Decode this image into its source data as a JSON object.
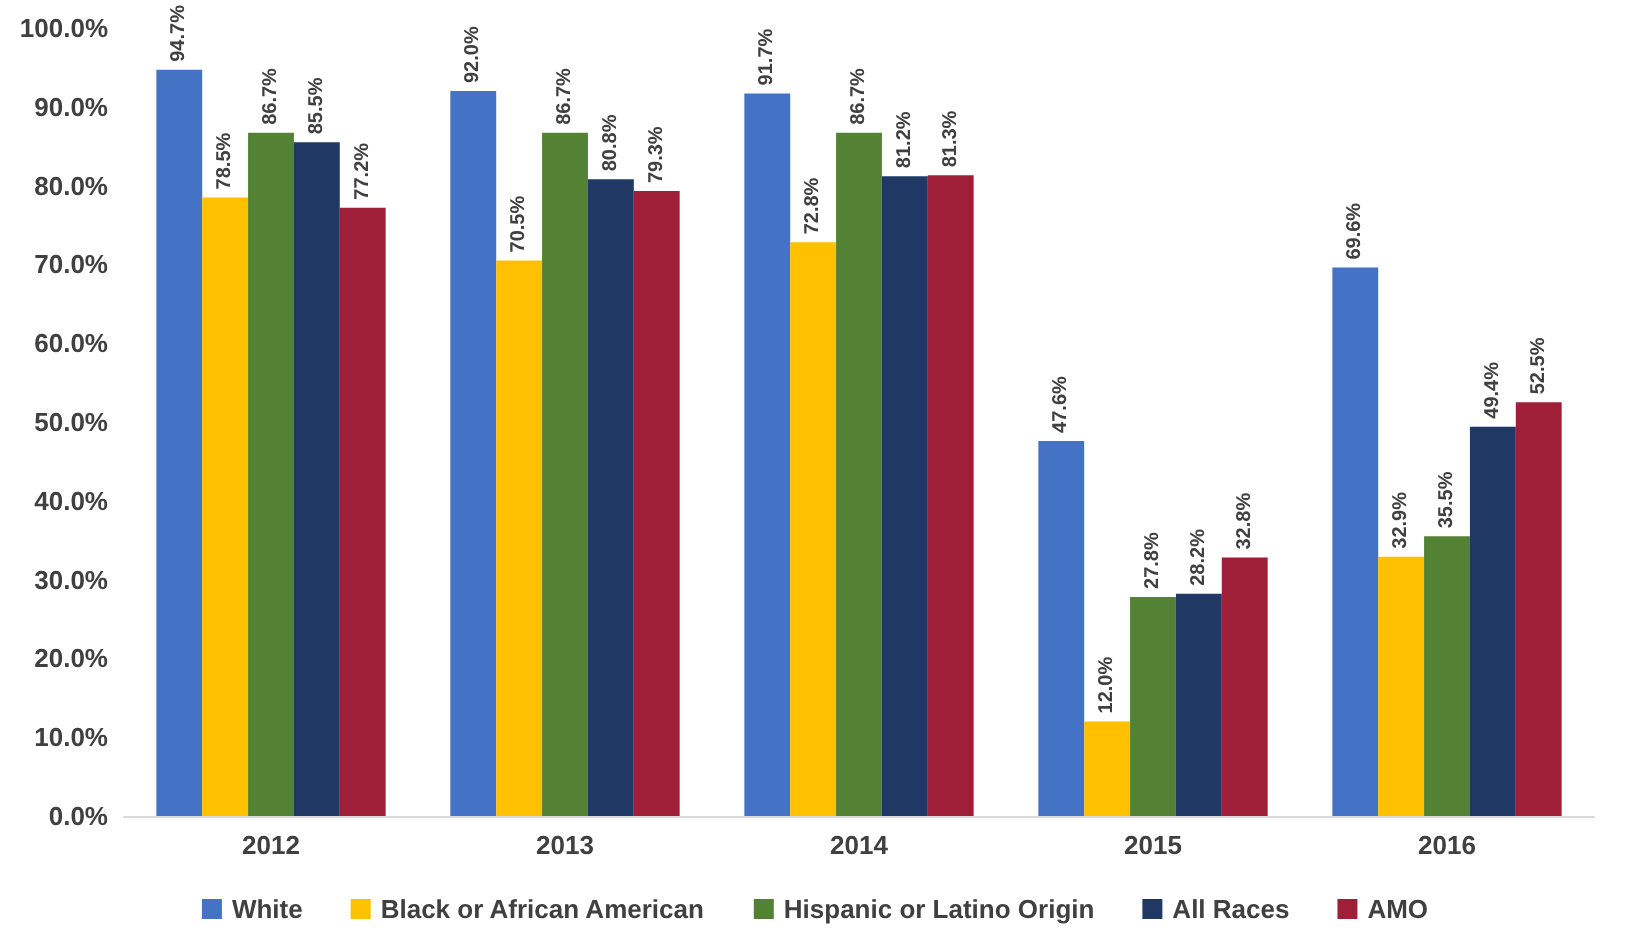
{
  "chart_data": {
    "type": "bar",
    "categories": [
      "2012",
      "2013",
      "2014",
      "2015",
      "2016"
    ],
    "series": [
      {
        "name": "White",
        "color": "#4472c4",
        "values": [
          94.7,
          92.0,
          91.7,
          47.6,
          69.6
        ],
        "value_labels": [
          "94.7%",
          "92.0%",
          "91.7%",
          "47.6%",
          "69.6%"
        ]
      },
      {
        "name": "Black or African American",
        "color": "#ffc000",
        "values": [
          78.5,
          70.5,
          72.8,
          12.0,
          32.9
        ],
        "value_labels": [
          "78.5%",
          "70.5%",
          "72.8%",
          "12.0%",
          "32.9%"
        ]
      },
      {
        "name": "Hispanic or Latino Origin",
        "color": "#548235",
        "values": [
          86.7,
          86.7,
          86.7,
          27.8,
          35.5
        ],
        "value_labels": [
          "86.7%",
          "86.7%",
          "86.7%",
          "27.8%",
          "35.5%"
        ]
      },
      {
        "name": "All Races",
        "color": "#203864",
        "values": [
          85.5,
          80.8,
          81.2,
          28.2,
          49.4
        ],
        "value_labels": [
          "85.5%",
          "80.8%",
          "81.2%",
          "28.2%",
          "49.4%"
        ]
      },
      {
        "name": "AMO",
        "color": "#a01f38",
        "values": [
          77.2,
          79.3,
          81.3,
          32.8,
          52.5
        ],
        "value_labels": [
          "77.2%",
          "79.3%",
          "81.3%",
          "32.8%",
          "52.5%"
        ]
      }
    ],
    "ylim": [
      0,
      100
    ],
    "yticks": [
      {
        "value": 0,
        "label": "0.0%"
      },
      {
        "value": 10,
        "label": "10.0%"
      },
      {
        "value": 20,
        "label": "20.0%"
      },
      {
        "value": 30,
        "label": "30.0%"
      },
      {
        "value": 40,
        "label": "40.0%"
      },
      {
        "value": 50,
        "label": "50.0%"
      },
      {
        "value": 60,
        "label": "60.0%"
      },
      {
        "value": 70,
        "label": "70.0%"
      },
      {
        "value": 80,
        "label": "80.0%"
      },
      {
        "value": 90,
        "label": "90.0%"
      },
      {
        "value": 100,
        "label": "100.0%"
      }
    ],
    "grid": false,
    "legend": "bottom"
  }
}
